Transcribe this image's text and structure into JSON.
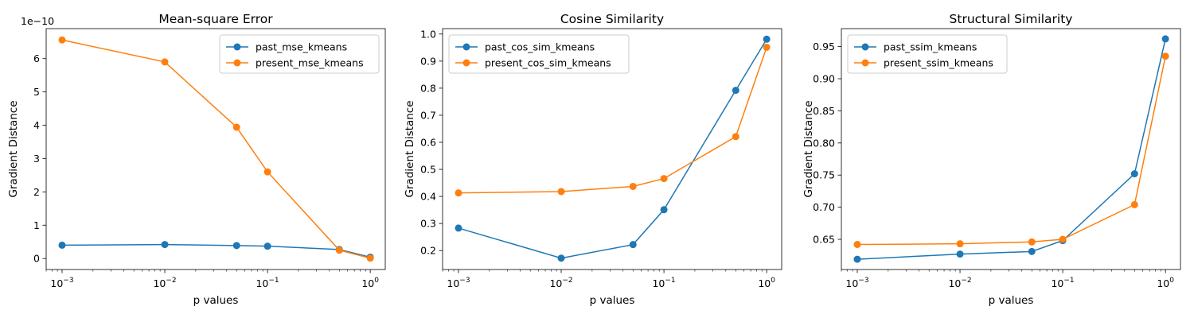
{
  "colors": {
    "series_1": "#1f77b4",
    "series_2": "#ff7f0e"
  },
  "chart_data": [
    {
      "type": "line",
      "title": "Mean-square Error",
      "xlabel": "p values",
      "ylabel": "Gradient Distance",
      "xscale": "log",
      "x": [
        0.001,
        0.01,
        0.05,
        0.1,
        0.5,
        1
      ],
      "xlim": [
        0.0007,
        1.4
      ],
      "ylim": [
        -3.3e-11,
        6.9e-10
      ],
      "yticks": [
        0,
        1e-10,
        2e-10,
        3e-10,
        4e-10,
        5e-10,
        6e-10
      ],
      "ytick_labels": [
        "0",
        "1",
        "2",
        "3",
        "4",
        "5",
        "6"
      ],
      "y_offset_label": "1e−10",
      "legend": "upper right",
      "grid": false,
      "series": [
        {
          "name": "past_mse_kmeans",
          "values": [
            4e-11,
            4.2e-11,
            3.9e-11,
            3.7e-11,
            2.7e-11,
            4e-12
          ]
        },
        {
          "name": "present_mse_kmeans",
          "values": [
            6.56e-10,
            5.9e-10,
            3.94e-10,
            2.6e-10,
            2.5e-11,
            1e-12
          ]
        }
      ]
    },
    {
      "type": "line",
      "title": "Cosine Similarity",
      "xlabel": "p values",
      "ylabel": "Gradient Distance",
      "xscale": "log",
      "x": [
        0.001,
        0.01,
        0.05,
        0.1,
        0.5,
        1
      ],
      "xlim": [
        0.0007,
        1.4
      ],
      "ylim": [
        0.13,
        1.02
      ],
      "yticks": [
        0.2,
        0.3,
        0.4,
        0.5,
        0.6,
        0.7,
        0.8,
        0.9,
        1.0
      ],
      "ytick_labels": [
        "0.2",
        "0.3",
        "0.4",
        "0.5",
        "0.6",
        "0.7",
        "0.8",
        "0.9",
        "1.0"
      ],
      "legend": "upper left",
      "grid": false,
      "series": [
        {
          "name": "past_cos_sim_kmeans",
          "values": [
            0.283,
            0.172,
            0.222,
            0.351,
            0.792,
            0.981
          ]
        },
        {
          "name": "present_cos_sim_kmeans",
          "values": [
            0.413,
            0.418,
            0.437,
            0.466,
            0.621,
            0.951
          ]
        }
      ]
    },
    {
      "type": "line",
      "title": "Structural Similarity",
      "xlabel": "p values",
      "ylabel": "Gradient Distance",
      "xscale": "log",
      "x": [
        0.001,
        0.01,
        0.05,
        0.1,
        0.5,
        1
      ],
      "xlim": [
        0.0007,
        1.4
      ],
      "ylim": [
        0.603,
        0.978
      ],
      "yticks": [
        0.65,
        0.7,
        0.75,
        0.8,
        0.85,
        0.9,
        0.95
      ],
      "ytick_labels": [
        "0.65",
        "0.70",
        "0.75",
        "0.80",
        "0.85",
        "0.90",
        "0.95"
      ],
      "legend": "upper left",
      "grid": false,
      "series": [
        {
          "name": "past_ssim_kmeans",
          "values": [
            0.619,
            0.627,
            0.631,
            0.648,
            0.752,
            0.962
          ]
        },
        {
          "name": "present_ssim_kmeans",
          "values": [
            0.642,
            0.643,
            0.646,
            0.65,
            0.704,
            0.935
          ]
        }
      ]
    }
  ]
}
